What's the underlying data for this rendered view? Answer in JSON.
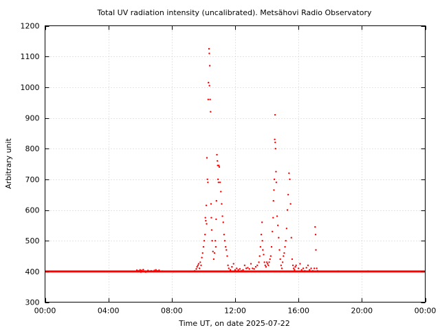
{
  "chart_data": {
    "type": "scatter",
    "title": "Total UV radiation intensity (uncalibrated). Metsähovi Radio Observatory",
    "xlabel": "Time UT, on date 2025-07-22",
    "ylabel": "Arbitrary unit",
    "xlim": [
      0,
      24
    ],
    "ylim": [
      300,
      1200
    ],
    "x_ticks": [
      {
        "value": 0,
        "label": "00:00"
      },
      {
        "value": 4,
        "label": "04:00"
      },
      {
        "value": 8,
        "label": "08:00"
      },
      {
        "value": 12,
        "label": "12:00"
      },
      {
        "value": 16,
        "label": "16:00"
      },
      {
        "value": 20,
        "label": "20:00"
      },
      {
        "value": 24,
        "label": "00:00"
      }
    ],
    "y_ticks": [
      {
        "value": 300,
        "label": "300"
      },
      {
        "value": 400,
        "label": "400"
      },
      {
        "value": 500,
        "label": "500"
      },
      {
        "value": 600,
        "label": "600"
      },
      {
        "value": 700,
        "label": "700"
      },
      {
        "value": 800,
        "label": "800"
      },
      {
        "value": 900,
        "label": "900"
      },
      {
        "value": 1000,
        "label": "1000"
      },
      {
        "value": 1100,
        "label": "1100"
      },
      {
        "value": 1200,
        "label": "1200"
      }
    ],
    "grid": true,
    "marker_color": "#ff0000",
    "baseline_value": 400,
    "baseline_range": [
      0,
      24
    ],
    "points": [
      [
        5.8,
        404
      ],
      [
        5.9,
        402
      ],
      [
        6.0,
        405
      ],
      [
        6.05,
        398
      ],
      [
        6.1,
        403
      ],
      [
        6.15,
        400
      ],
      [
        6.2,
        406
      ],
      [
        6.3,
        401
      ],
      [
        6.35,
        398
      ],
      [
        6.5,
        403
      ],
      [
        6.7,
        402
      ],
      [
        6.9,
        403
      ],
      [
        7.0,
        405
      ],
      [
        7.1,
        402
      ],
      [
        7.2,
        404
      ],
      [
        7.4,
        401
      ],
      [
        8.1,
        399
      ],
      [
        9.45,
        402
      ],
      [
        9.55,
        408
      ],
      [
        9.6,
        415
      ],
      [
        9.65,
        420
      ],
      [
        9.7,
        425
      ],
      [
        9.75,
        410
      ],
      [
        9.8,
        430
      ],
      [
        9.85,
        420
      ],
      [
        9.9,
        445
      ],
      [
        9.95,
        460
      ],
      [
        10.0,
        480
      ],
      [
        10.05,
        500
      ],
      [
        10.1,
        520
      ],
      [
        10.12,
        575
      ],
      [
        10.15,
        565
      ],
      [
        10.18,
        615
      ],
      [
        10.2,
        555
      ],
      [
        10.22,
        770
      ],
      [
        10.25,
        700
      ],
      [
        10.28,
        690
      ],
      [
        10.3,
        960
      ],
      [
        10.32,
        1015
      ],
      [
        10.35,
        1125
      ],
      [
        10.37,
        1110
      ],
      [
        10.38,
        1005
      ],
      [
        10.4,
        1070
      ],
      [
        10.42,
        960
      ],
      [
        10.45,
        920
      ],
      [
        10.48,
        620
      ],
      [
        10.5,
        575
      ],
      [
        10.52,
        535
      ],
      [
        10.55,
        500
      ],
      [
        10.6,
        465
      ],
      [
        10.65,
        440
      ],
      [
        10.7,
        460
      ],
      [
        10.75,
        500
      ],
      [
        10.78,
        480
      ],
      [
        10.8,
        570
      ],
      [
        10.82,
        630
      ],
      [
        10.85,
        780
      ],
      [
        10.88,
        760
      ],
      [
        10.9,
        745
      ],
      [
        10.92,
        700
      ],
      [
        10.95,
        690
      ],
      [
        10.97,
        745
      ],
      [
        11.0,
        740
      ],
      [
        11.05,
        690
      ],
      [
        11.1,
        660
      ],
      [
        11.15,
        620
      ],
      [
        11.2,
        580
      ],
      [
        11.25,
        560
      ],
      [
        11.3,
        520
      ],
      [
        11.35,
        500
      ],
      [
        11.4,
        480
      ],
      [
        11.45,
        470
      ],
      [
        11.5,
        450
      ],
      [
        11.55,
        420
      ],
      [
        11.6,
        410
      ],
      [
        11.7,
        405
      ],
      [
        11.8,
        415
      ],
      [
        11.9,
        425
      ],
      [
        12.0,
        405
      ],
      [
        12.1,
        410
      ],
      [
        12.2,
        405
      ],
      [
        12.3,
        408
      ],
      [
        12.4,
        402
      ],
      [
        12.5,
        405
      ],
      [
        12.6,
        420
      ],
      [
        12.7,
        410
      ],
      [
        12.8,
        412
      ],
      [
        12.9,
        408
      ],
      [
        13.0,
        425
      ],
      [
        13.1,
        410
      ],
      [
        13.2,
        408
      ],
      [
        13.3,
        415
      ],
      [
        13.4,
        420
      ],
      [
        13.5,
        430
      ],
      [
        13.55,
        450
      ],
      [
        13.6,
        480
      ],
      [
        13.65,
        520
      ],
      [
        13.7,
        560
      ],
      [
        13.72,
        500
      ],
      [
        13.75,
        470
      ],
      [
        13.8,
        455
      ],
      [
        13.85,
        430
      ],
      [
        13.9,
        420
      ],
      [
        13.95,
        415
      ],
      [
        14.0,
        430
      ],
      [
        14.05,
        425
      ],
      [
        14.1,
        420
      ],
      [
        14.15,
        430
      ],
      [
        14.2,
        440
      ],
      [
        14.25,
        450
      ],
      [
        14.3,
        480
      ],
      [
        14.35,
        530
      ],
      [
        14.4,
        575
      ],
      [
        14.42,
        630
      ],
      [
        14.45,
        665
      ],
      [
        14.48,
        700
      ],
      [
        14.5,
        830
      ],
      [
        14.52,
        910
      ],
      [
        14.53,
        820
      ],
      [
        14.55,
        800
      ],
      [
        14.58,
        725
      ],
      [
        14.6,
        690
      ],
      [
        14.65,
        580
      ],
      [
        14.7,
        550
      ],
      [
        14.75,
        510
      ],
      [
        14.8,
        470
      ],
      [
        14.85,
        440
      ],
      [
        14.9,
        420
      ],
      [
        14.95,
        410
      ],
      [
        15.0,
        430
      ],
      [
        15.05,
        450
      ],
      [
        15.1,
        460
      ],
      [
        15.15,
        480
      ],
      [
        15.2,
        500
      ],
      [
        15.25,
        540
      ],
      [
        15.3,
        600
      ],
      [
        15.35,
        650
      ],
      [
        15.4,
        720
      ],
      [
        15.45,
        700
      ],
      [
        15.5,
        620
      ],
      [
        15.55,
        510
      ],
      [
        15.6,
        440
      ],
      [
        15.65,
        420
      ],
      [
        15.7,
        410
      ],
      [
        15.75,
        405
      ],
      [
        15.8,
        415
      ],
      [
        15.85,
        420
      ],
      [
        16.0,
        410
      ],
      [
        16.1,
        425
      ],
      [
        16.2,
        405
      ],
      [
        16.3,
        410
      ],
      [
        16.4,
        402
      ],
      [
        16.5,
        412
      ],
      [
        16.6,
        420
      ],
      [
        16.7,
        405
      ],
      [
        16.8,
        410
      ],
      [
        16.9,
        402
      ],
      [
        17.0,
        410
      ],
      [
        17.05,
        545
      ],
      [
        17.08,
        520
      ],
      [
        17.1,
        470
      ],
      [
        17.15,
        410
      ],
      [
        17.2,
        402
      ],
      [
        18.5,
        401
      ],
      [
        20.4,
        401
      ]
    ]
  }
}
